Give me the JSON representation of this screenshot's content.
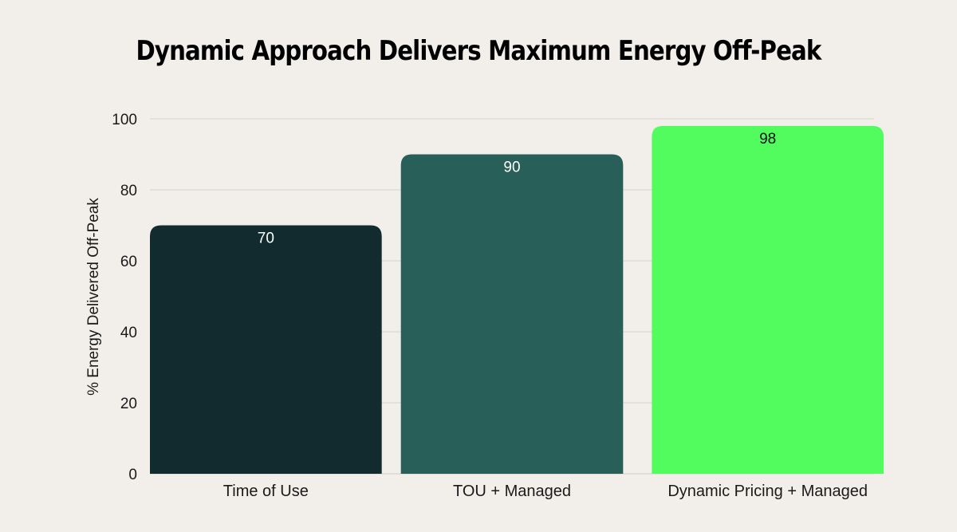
{
  "chart_data": {
    "type": "bar",
    "title": "Dynamic Approach Delivers Maximum Energy Off-Peak",
    "xlabel": "",
    "ylabel": "% Energy Delivered Off-Peak",
    "categories": [
      "Time of Use",
      "TOU + Managed",
      "Dynamic Pricing + Managed"
    ],
    "values": [
      70,
      90,
      98
    ],
    "bar_colors": [
      "#112b2e",
      "#285f58",
      "#52fc5f"
    ],
    "data_label_colors": [
      "#ffffff",
      "#ffffff",
      "#111111"
    ],
    "ylim": [
      0,
      100
    ],
    "yticks": [
      0,
      20,
      40,
      60,
      80,
      100
    ],
    "grid": true,
    "legend": false
  }
}
